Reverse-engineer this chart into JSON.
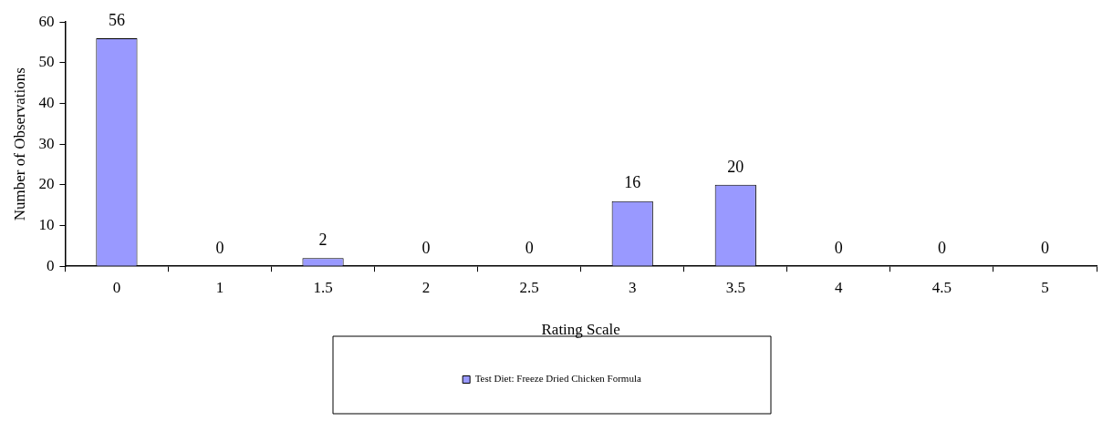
{
  "chart_data": {
    "type": "bar",
    "xlabel": "Rating Scale",
    "ylabel": "Number of Observations",
    "categories": [
      "0",
      "1",
      "1.5",
      "2",
      "2.5",
      "3",
      "3.5",
      "4",
      "4.5",
      "5"
    ],
    "series": [
      {
        "name": "Test Diet: Freeze Dried Chicken Formula",
        "color": "#9999ff",
        "values": [
          56,
          0,
          2,
          0,
          0,
          16,
          20,
          0,
          0,
          0
        ]
      }
    ],
    "ylim": [
      0,
      60
    ],
    "yticks": [
      0,
      10,
      20,
      30,
      40,
      50,
      60
    ],
    "grid": false,
    "legend": "bottom",
    "data_labels": true
  }
}
